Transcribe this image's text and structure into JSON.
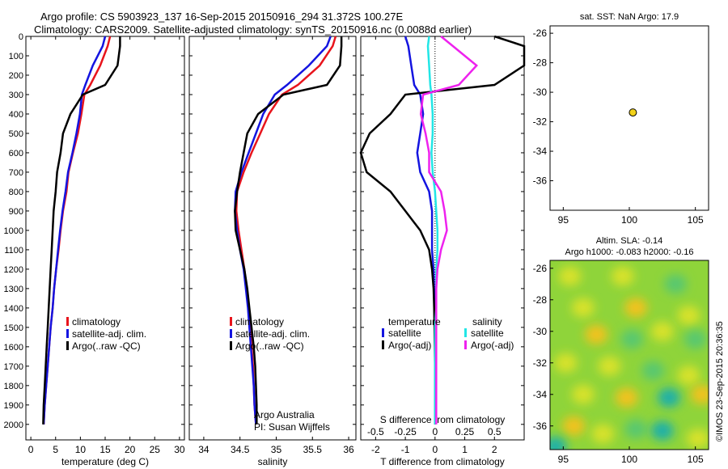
{
  "header": {
    "title_line1": "Argo profile: CS 5903923_137 16-Sep-2015 20150916_294 31.372S 100.27E",
    "title_line2": "Climatology: CARS2009. Satellite-adjusted climatology: synTS_20150916.nc (0.0088d earlier)"
  },
  "colors": {
    "climatology": "#e8141c",
    "satellite": "#1414e0",
    "argo": "#000000",
    "sal_satellite": "#22e6e6",
    "sal_argo": "#ee22ee",
    "dot": "#f2d21a"
  },
  "depth_ticks": [
    "0",
    "100",
    "200",
    "300",
    "400",
    "500",
    "600",
    "700",
    "800",
    "900",
    "1000",
    "1100",
    "1200",
    "1300",
    "1400",
    "1500",
    "1600",
    "1700",
    "1800",
    "1900",
    "2000"
  ],
  "chart_data": [
    {
      "type": "line",
      "panel": "temperature",
      "xlabel": "temperature (deg C)",
      "ylabel": "",
      "xlim": [
        -1,
        31
      ],
      "ylim": [
        2080,
        0
      ],
      "x_ticks": [
        "0",
        "5",
        "10",
        "15",
        "20",
        "25",
        "30"
      ],
      "legend": [
        "climatology",
        "satellite-adj. clim.",
        "Argo(..raw -QC)"
      ],
      "series": [
        {
          "name": "climatology",
          "x": [
            16,
            15.5,
            14,
            12,
            10.8,
            10.2,
            9.5,
            8.5,
            7.6,
            7.2,
            6.5,
            6,
            5.6,
            5.1,
            4.7,
            4.4,
            4,
            3.7,
            3.4,
            3.1,
            2.8,
            2.6
          ],
          "y": [
            0,
            50,
            150,
            250,
            300,
            400,
            500,
            600,
            700,
            800,
            900,
            1000,
            1100,
            1200,
            1300,
            1400,
            1500,
            1600,
            1700,
            1800,
            1900,
            2000
          ]
        },
        {
          "name": "satellite-adj. clim.",
          "x": [
            15,
            14.5,
            12.5,
            11,
            10.3,
            9.9,
            9.2,
            8.4,
            7.5,
            7,
            6.4,
            5.9,
            5.5,
            5.1,
            4.7,
            4.4,
            4,
            3.7,
            3.4,
            3.1,
            2.8,
            2.6
          ],
          "y": [
            0,
            50,
            150,
            250,
            300,
            400,
            500,
            600,
            700,
            800,
            900,
            1000,
            1100,
            1200,
            1300,
            1400,
            1500,
            1600,
            1700,
            1800,
            1900,
            2000
          ]
        },
        {
          "name": "Argo(..raw -QC)",
          "x": [
            18,
            18,
            17.5,
            15,
            10.5,
            8,
            6.5,
            6,
            5.3,
            5,
            4.6,
            4.4,
            4.2,
            4,
            3.8,
            3.6,
            3.4,
            3.2,
            3,
            2.8,
            2.6,
            2.5
          ],
          "y": [
            0,
            50,
            150,
            250,
            300,
            400,
            500,
            600,
            700,
            800,
            900,
            1000,
            1100,
            1200,
            1300,
            1400,
            1500,
            1600,
            1700,
            1800,
            1900,
            2000
          ]
        }
      ]
    },
    {
      "type": "line",
      "panel": "salinity",
      "xlabel": "salinity",
      "ylabel": "",
      "xlim": [
        33.8,
        36.1
      ],
      "ylim": [
        2080,
        0
      ],
      "x_ticks": [
        "34",
        "34.5",
        "35",
        "35.5",
        "36"
      ],
      "legend": [
        "climatology",
        "satellite-adj. clim.",
        "Argo(..raw -QC)"
      ],
      "annotations": [
        "Argo Australia",
        "PI: Susan Wijffels"
      ],
      "series": [
        {
          "name": "climatology",
          "x": [
            35.82,
            35.78,
            35.6,
            35.3,
            35.08,
            34.9,
            34.78,
            34.66,
            34.55,
            34.46,
            34.45,
            34.48,
            34.52,
            34.56,
            34.59,
            34.62,
            34.64,
            34.66,
            34.68,
            34.69,
            34.7,
            34.72
          ],
          "y": [
            0,
            50,
            150,
            250,
            300,
            400,
            500,
            600,
            700,
            800,
            900,
            1000,
            1100,
            1200,
            1300,
            1400,
            1500,
            1600,
            1700,
            1800,
            1900,
            2000
          ]
        },
        {
          "name": "satellite-adj. clim.",
          "x": [
            35.75,
            35.7,
            35.45,
            35.15,
            34.98,
            34.82,
            34.72,
            34.62,
            34.52,
            34.44,
            34.43,
            34.46,
            34.5,
            34.55,
            34.58,
            34.61,
            34.63,
            34.65,
            34.67,
            34.69,
            34.7,
            34.72
          ],
          "y": [
            0,
            50,
            150,
            250,
            300,
            400,
            500,
            600,
            700,
            800,
            900,
            1000,
            1100,
            1200,
            1300,
            1400,
            1500,
            1600,
            1700,
            1800,
            1900,
            2000
          ]
        },
        {
          "name": "Argo(..raw -QC)",
          "x": [
            35.9,
            35.9,
            35.88,
            35.7,
            35.1,
            34.75,
            34.6,
            34.55,
            34.5,
            34.46,
            34.43,
            34.44,
            34.5,
            34.56,
            34.6,
            34.63,
            34.66,
            34.69,
            34.71,
            34.72,
            34.73,
            34.73
          ],
          "y": [
            0,
            50,
            150,
            250,
            300,
            400,
            500,
            600,
            700,
            800,
            900,
            1000,
            1100,
            1200,
            1300,
            1400,
            1500,
            1600,
            1700,
            1800,
            1900,
            2000
          ]
        }
      ]
    },
    {
      "type": "line",
      "panel": "differences",
      "xlabel": "T difference from climatology",
      "ylabel": "",
      "xlim": [
        -2.5,
        3
      ],
      "ylim": [
        2080,
        0
      ],
      "x_ticks": [
        "-2",
        "-1",
        "0",
        "1",
        "2"
      ],
      "x2label": "S difference from climatology",
      "x2lim": [
        -0.625,
        0.75
      ],
      "x2_ticks": [
        "-0.5",
        "-0.25",
        "0",
        "0.25",
        "0.5"
      ],
      "legend": [
        "temperature",
        "satellite",
        "Argo(-adj)",
        "salinity",
        "satellite",
        "Argo(-adj)"
      ],
      "series": [
        {
          "name": "temperature satellite",
          "x": [
            -1,
            -0.9,
            -0.8,
            -0.7,
            -0.5,
            -0.4,
            -0.5,
            -0.6,
            -0.5,
            -0.2,
            -0.1,
            -0.1,
            -0.1,
            -0.05,
            -0.03,
            -0.02,
            -0.01,
            0,
            0,
            0,
            0,
            0
          ],
          "y": [
            0,
            50,
            150,
            250,
            300,
            400,
            500,
            600,
            700,
            800,
            900,
            1000,
            1100,
            1200,
            1300,
            1400,
            1500,
            1600,
            1700,
            1800,
            1900,
            2000
          ]
        },
        {
          "name": "temperature Argo(-adj)",
          "x": [
            2,
            3,
            3,
            2,
            -1,
            -1.5,
            -2.2,
            -2.6,
            -2.3,
            -1.5,
            -1,
            -0.5,
            -0.2,
            -0.1,
            -0.05,
            -0.03,
            -0.02,
            -0.01,
            0,
            0,
            0,
            0
          ],
          "y": [
            0,
            50,
            150,
            250,
            300,
            400,
            500,
            600,
            700,
            800,
            900,
            1000,
            1100,
            1200,
            1300,
            1400,
            1500,
            1600,
            1700,
            1800,
            1900,
            2000
          ]
        },
        {
          "name": "salinity satellite",
          "x": [
            -0.05,
            -0.06,
            -0.05,
            -0.04,
            -0.03,
            -0.02,
            -0.02,
            -0.03,
            -0.02,
            0,
            0.01,
            0.02,
            0.02,
            0.01,
            0.01,
            0.01,
            0,
            0,
            0,
            0,
            0,
            0
          ],
          "y": [
            0,
            50,
            150,
            250,
            300,
            400,
            500,
            600,
            700,
            800,
            900,
            1000,
            1100,
            1200,
            1300,
            1400,
            1500,
            1600,
            1700,
            1800,
            1900,
            2000
          ]
        },
        {
          "name": "salinity Argo(-adj)",
          "x": [
            0.05,
            0.15,
            0.35,
            0.2,
            -0.1,
            -0.12,
            -0.08,
            -0.05,
            -0.05,
            0.05,
            0.08,
            0.1,
            0.05,
            0.02,
            0.01,
            0.01,
            0.01,
            0.01,
            0.01,
            0.01,
            0.01,
            0.01
          ],
          "y": [
            0,
            50,
            150,
            250,
            300,
            400,
            500,
            600,
            700,
            800,
            900,
            1000,
            1100,
            1200,
            1300,
            1400,
            1500,
            1600,
            1700,
            1800,
            1900,
            2000
          ]
        }
      ]
    },
    {
      "type": "scatter",
      "panel": "location",
      "title": "sat. SST: NaN Argo: 17.9",
      "xlim": [
        94,
        106
      ],
      "ylim": [
        -38,
        -25.5
      ],
      "x_ticks": [
        "95",
        "100",
        "105"
      ],
      "y_ticks": [
        "-26",
        "-28",
        "-30",
        "-32",
        "-34",
        "-36"
      ],
      "series": [
        {
          "name": "",
          "x": [
            100.27
          ],
          "y": [
            -31.372
          ]
        }
      ]
    },
    {
      "type": "heatmap",
      "panel": "sla",
      "title_line1": "Altim. SLA: -0.14",
      "title_line2": "Argo h1000: -0.083 h2000: -0.16",
      "xlim": [
        94,
        106
      ],
      "ylim": [
        -37.5,
        -25.5
      ],
      "x_ticks": [
        "95",
        "100",
        "105"
      ],
      "y_ticks": [
        "-26",
        "-28",
        "-30",
        "-32",
        "-34",
        "-36"
      ],
      "blobs": [
        {
          "x": 95.5,
          "y": -26.5,
          "v": 0.6
        },
        {
          "x": 99.5,
          "y": -26.5,
          "v": 0.4
        },
        {
          "x": 103.5,
          "y": -27,
          "v": -0.7
        },
        {
          "x": 96.5,
          "y": -28.5,
          "v": 0.5
        },
        {
          "x": 100.5,
          "y": -28.5,
          "v": 0.8
        },
        {
          "x": 104.5,
          "y": -29,
          "v": 0.4
        },
        {
          "x": 97.5,
          "y": -30.2,
          "v": 0.9
        },
        {
          "x": 100.2,
          "y": -30.5,
          "v": -0.6
        },
        {
          "x": 102.5,
          "y": -30,
          "v": 0.6
        },
        {
          "x": 105,
          "y": -30.5,
          "v": -0.7
        },
        {
          "x": 95.2,
          "y": -32,
          "v": 0.5
        },
        {
          "x": 98.5,
          "y": -32.2,
          "v": 0.7
        },
        {
          "x": 101.8,
          "y": -32.5,
          "v": -0.4
        },
        {
          "x": 104.5,
          "y": -32.8,
          "v": 0.6
        },
        {
          "x": 96.5,
          "y": -34,
          "v": 0.6
        },
        {
          "x": 99.8,
          "y": -34.2,
          "v": 0.8
        },
        {
          "x": 103,
          "y": -34.2,
          "v": -0.8
        },
        {
          "x": 105.5,
          "y": -34,
          "v": 0.9
        },
        {
          "x": 95.8,
          "y": -36,
          "v": 0.8
        },
        {
          "x": 100.5,
          "y": -36.2,
          "v": -0.5
        },
        {
          "x": 98,
          "y": -36.5,
          "v": 0.6
        },
        {
          "x": 102.5,
          "y": -36.3,
          "v": -0.9
        },
        {
          "x": 105.2,
          "y": -36.8,
          "v": 0.5
        },
        {
          "x": 94.4,
          "y": -37.3,
          "v": -0.8
        }
      ]
    }
  ],
  "stamp": "©IMOS 23-Sep-2015 20:36:35"
}
